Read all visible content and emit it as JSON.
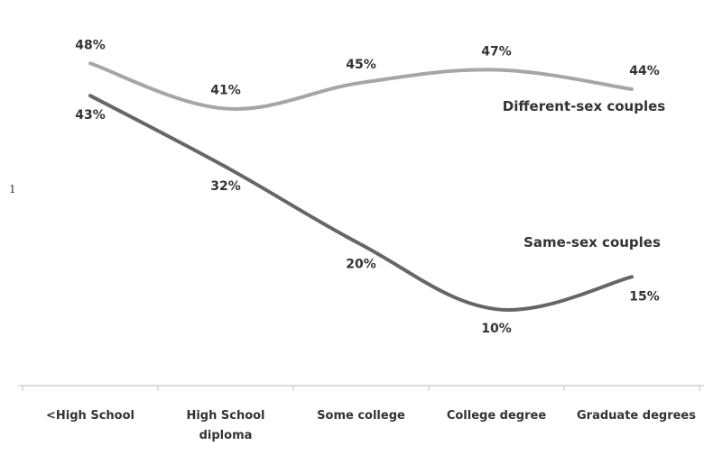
{
  "chart_data": {
    "type": "line",
    "categories": [
      "<High School",
      "High School diploma",
      "Some college",
      "College degree",
      "Graduate degree"
    ],
    "tick_lines": [
      [
        "<High School"
      ],
      [
        "High School",
        "diploma"
      ],
      [
        "Some college"
      ],
      [
        "College degree"
      ],
      [
        "Graduate degrees"
      ]
    ],
    "series": [
      {
        "name": "Different-sex couples",
        "values": [
          48,
          41,
          45,
          47,
          44
        ],
        "labels": [
          "48%",
          "41%",
          "45%",
          "47%",
          "44%"
        ],
        "color": "#a6a6a6"
      },
      {
        "name": "Same-sex couples",
        "values": [
          43,
          32,
          20,
          10,
          15
        ],
        "labels": [
          "43%",
          "32%",
          "20%",
          "10%",
          "15%"
        ],
        "color": "#666666"
      }
    ],
    "title": "",
    "xlabel": "",
    "ylabel": "",
    "ylim": [
      0,
      55
    ],
    "grid": false,
    "legend": "inline"
  },
  "stray_mark": "1"
}
